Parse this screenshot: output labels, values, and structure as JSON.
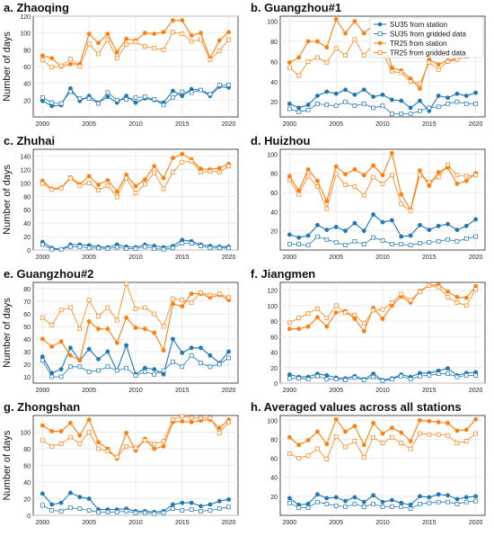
{
  "figure": {
    "ylabel": "Number of days",
    "colors": {
      "su35": "#1f77b4",
      "tr25": "#ff7f0e"
    }
  },
  "chart_data": [
    {
      "type": "line",
      "title": "a. Zhaoqing",
      "x": [
        2000,
        2001,
        2002,
        2003,
        2004,
        2005,
        2006,
        2007,
        2008,
        2009,
        2010,
        2011,
        2012,
        2013,
        2014,
        2015,
        2016,
        2017,
        2018,
        2019,
        2020
      ],
      "xticks": [
        2000,
        2005,
        2010,
        2015,
        2020
      ],
      "ylim": [
        0,
        120
      ],
      "yticks": [
        20,
        40,
        60,
        80,
        100,
        120
      ],
      "ylabel": "Number of days",
      "series": [
        {
          "name": "SU35 from station",
          "values": [
            19,
            13,
            14,
            34,
            19,
            25,
            17,
            24,
            17,
            25,
            17,
            22,
            20,
            17,
            31,
            25,
            33,
            32,
            25,
            36,
            35
          ]
        },
        {
          "name": "SU35 from gridded data",
          "values": [
            23,
            17,
            16,
            30,
            22,
            22,
            16,
            29,
            20,
            21,
            23,
            24,
            21,
            14,
            23,
            30,
            29,
            32,
            27,
            38,
            38
          ]
        },
        {
          "name": "TR25 from station",
          "values": [
            73,
            70,
            60,
            63,
            63,
            99,
            88,
            99,
            77,
            93,
            91,
            100,
            99,
            101,
            115,
            115,
            97,
            100,
            70,
            91,
            101
          ]
        },
        {
          "name": "TR25 from gridded data",
          "values": [
            68,
            59,
            61,
            69,
            60,
            87,
            75,
            92,
            70,
            86,
            89,
            84,
            82,
            80,
            101,
            99,
            90,
            92,
            68,
            79,
            92
          ]
        }
      ]
    },
    {
      "type": "line",
      "title": "b. Guangzhou#1",
      "x": [
        2000,
        2001,
        2002,
        2003,
        2004,
        2005,
        2006,
        2007,
        2008,
        2009,
        2010,
        2011,
        2012,
        2013,
        2014,
        2015,
        2016,
        2017,
        2018,
        2019,
        2020
      ],
      "xticks": [
        2000,
        2005,
        2010,
        2015,
        2020
      ],
      "ylim": [
        5,
        105
      ],
      "yticks": [
        20,
        40,
        60,
        80,
        100
      ],
      "series": [
        {
          "name": "SU35 from station",
          "values": [
            18,
            14,
            17,
            26,
            30,
            28,
            32,
            27,
            32,
            25,
            27,
            22,
            21,
            14,
            21,
            11,
            26,
            24,
            28,
            26,
            29
          ]
        },
        {
          "name": "SU35 from gridded data",
          "values": [
            13,
            10,
            12,
            18,
            17,
            16,
            20,
            16,
            18,
            14,
            16,
            8,
            8,
            8,
            11,
            14,
            15,
            18,
            20,
            18,
            18
          ]
        },
        {
          "name": "TR25 from station",
          "values": [
            59,
            64,
            80,
            80,
            74,
            102,
            88,
            100,
            88,
            96,
            86,
            54,
            51,
            43,
            33,
            62,
            57,
            61,
            63,
            67,
            72
          ]
        },
        {
          "name": "TR25 from gridded data",
          "values": [
            54,
            46,
            60,
            64,
            59,
            73,
            66,
            82,
            66,
            78,
            69,
            50,
            49,
            40,
            38,
            59,
            52,
            60,
            62,
            65,
            70
          ]
        }
      ],
      "legend": {
        "position": "top-right",
        "entries": [
          "SU35 from station",
          "SU35 from gridded data",
          "TR25 from station",
          "TR25 from gridded data"
        ]
      }
    },
    {
      "type": "line",
      "title": "c. Zhuhai",
      "x": [
        2000,
        2001,
        2002,
        2003,
        2004,
        2005,
        2006,
        2007,
        2008,
        2009,
        2010,
        2011,
        2012,
        2013,
        2014,
        2015,
        2016,
        2017,
        2018,
        2019,
        2020
      ],
      "xticks": [
        2000,
        2005,
        2010,
        2015,
        2020
      ],
      "ylim": [
        0,
        150
      ],
      "yticks": [
        0,
        20,
        40,
        60,
        80,
        100,
        120,
        140
      ],
      "ylabel": "Number of days",
      "series": [
        {
          "name": "SU35 from station",
          "values": [
            12,
            3,
            1,
            8,
            8,
            7,
            5,
            4,
            8,
            5,
            4,
            8,
            6,
            4,
            6,
            15,
            13,
            8,
            6,
            5,
            5
          ]
        },
        {
          "name": "SU35 from gridded data",
          "values": [
            8,
            1,
            1,
            5,
            5,
            3,
            3,
            2,
            4,
            2,
            2,
            5,
            2,
            1,
            3,
            10,
            10,
            6,
            3,
            3,
            3
          ]
        },
        {
          "name": "TR25 from station",
          "values": [
            103,
            91,
            93,
            108,
            98,
            110,
            97,
            104,
            87,
            112,
            95,
            105,
            125,
            107,
            137,
            143,
            135,
            121,
            120,
            122,
            128
          ]
        },
        {
          "name": "TR25 from gridded data",
          "values": [
            99,
            90,
            92,
            107,
            96,
            100,
            89,
            96,
            79,
            107,
            85,
            98,
            115,
            91,
            116,
            131,
            132,
            116,
            117,
            116,
            125
          ]
        }
      ]
    },
    {
      "type": "line",
      "title": "d. Huizhou",
      "x": [
        2000,
        2001,
        2002,
        2003,
        2004,
        2005,
        2006,
        2007,
        2008,
        2009,
        2010,
        2011,
        2012,
        2013,
        2014,
        2015,
        2016,
        2017,
        2018,
        2019,
        2020
      ],
      "xticks": [
        2000,
        2005,
        2010,
        2015,
        2020
      ],
      "ylim": [
        0,
        105
      ],
      "yticks": [
        20,
        40,
        60,
        80,
        100
      ],
      "series": [
        {
          "name": "SU35 from station",
          "values": [
            16,
            13,
            15,
            26,
            21,
            24,
            20,
            28,
            20,
            37,
            29,
            31,
            14,
            15,
            26,
            21,
            25,
            27,
            21,
            25,
            32
          ]
        },
        {
          "name": "SU35 from gridded data",
          "values": [
            6,
            6,
            5,
            14,
            11,
            8,
            5,
            9,
            6,
            13,
            10,
            6,
            6,
            5,
            7,
            8,
            9,
            11,
            9,
            12,
            14
          ]
        },
        {
          "name": "TR25 from station",
          "values": [
            77,
            62,
            84,
            72,
            51,
            87,
            79,
            84,
            78,
            88,
            78,
            101,
            58,
            42,
            83,
            67,
            81,
            86,
            69,
            72,
            80
          ]
        },
        {
          "name": "TR25 from gridded data",
          "values": [
            73,
            58,
            77,
            66,
            43,
            79,
            68,
            66,
            57,
            76,
            69,
            78,
            48,
            41,
            78,
            71,
            76,
            89,
            78,
            77,
            78
          ]
        }
      ]
    },
    {
      "type": "line",
      "title": "e. Guangzhou#2",
      "x": [
        2000,
        2001,
        2002,
        2003,
        2004,
        2005,
        2006,
        2007,
        2008,
        2009,
        2010,
        2011,
        2012,
        2013,
        2014,
        2015,
        2016,
        2017,
        2018,
        2019,
        2020
      ],
      "xticks": [
        2000,
        2005,
        2010,
        2015,
        2020
      ],
      "ylim": [
        5,
        85
      ],
      "yticks": [
        10,
        20,
        30,
        40,
        50,
        60,
        70,
        80
      ],
      "ylabel": "Number of days",
      "series": [
        {
          "name": "SU35 from station",
          "values": [
            26,
            13,
            16,
            33,
            23,
            32,
            24,
            30,
            15,
            35,
            12,
            17,
            16,
            12,
            40,
            29,
            33,
            33,
            27,
            21,
            30
          ]
        },
        {
          "name": "SU35 from gridded data",
          "values": [
            23,
            10,
            10,
            18,
            18,
            14,
            15,
            18,
            15,
            17,
            11,
            14,
            12,
            15,
            22,
            18,
            27,
            21,
            18,
            20,
            25
          ]
        },
        {
          "name": "TR25 from station",
          "values": [
            40,
            34,
            38,
            27,
            23,
            54,
            48,
            48,
            37,
            57,
            49,
            48,
            45,
            31,
            68,
            66,
            76,
            76,
            73,
            75,
            71
          ]
        },
        {
          "name": "TR25 from gridded data",
          "values": [
            57,
            51,
            63,
            65,
            48,
            71,
            58,
            65,
            55,
            84,
            64,
            65,
            60,
            50,
            72,
            71,
            69,
            77,
            75,
            76,
            73
          ]
        }
      ]
    },
    {
      "type": "line",
      "title": "f. Jiangmen",
      "x": [
        2000,
        2001,
        2002,
        2003,
        2004,
        2005,
        2006,
        2007,
        2008,
        2009,
        2010,
        2011,
        2012,
        2013,
        2014,
        2015,
        2016,
        2017,
        2018,
        2019,
        2020
      ],
      "xticks": [
        2000,
        2005,
        2010,
        2015,
        2020
      ],
      "ylim": [
        0,
        130
      ],
      "yticks": [
        0,
        20,
        40,
        60,
        80,
        100,
        120
      ],
      "series": [
        {
          "name": "SU35 from station",
          "values": [
            11,
            8,
            8,
            12,
            10,
            7,
            6,
            9,
            5,
            12,
            4,
            6,
            11,
            8,
            13,
            13,
            16,
            19,
            10,
            13,
            14
          ]
        },
        {
          "name": "SU35 from gridded data",
          "values": [
            6,
            6,
            5,
            9,
            5,
            5,
            4,
            7,
            4,
            8,
            3,
            5,
            9,
            5,
            9,
            10,
            12,
            12,
            8,
            10,
            10
          ]
        },
        {
          "name": "TR25 from station",
          "values": [
            70,
            70,
            73,
            85,
            73,
            91,
            93,
            83,
            67,
            97,
            83,
            100,
            112,
            104,
            119,
            126,
            127,
            118,
            111,
            110,
            125
          ]
        },
        {
          "name": "TR25 from gridded data",
          "values": [
            78,
            84,
            90,
            96,
            84,
            100,
            91,
            88,
            77,
            94,
            95,
            104,
            115,
            107,
            118,
            126,
            124,
            111,
            104,
            100,
            121
          ]
        }
      ]
    },
    {
      "type": "line",
      "title": "g. Zhongshan",
      "x": [
        2000,
        2001,
        2002,
        2003,
        2004,
        2005,
        2006,
        2007,
        2008,
        2009,
        2010,
        2011,
        2012,
        2013,
        2014,
        2015,
        2016,
        2017,
        2018,
        2019,
        2020
      ],
      "xticks": [
        2000,
        2005,
        2010,
        2015,
        2020
      ],
      "ylim": [
        0,
        120
      ],
      "yticks": [
        0,
        20,
        40,
        60,
        80,
        100
      ],
      "ylabel": "Number of days",
      "series": [
        {
          "name": "SU35 from station",
          "values": [
            26,
            13,
            15,
            27,
            22,
            20,
            7,
            7,
            7,
            8,
            5,
            5,
            4,
            5,
            13,
            15,
            15,
            11,
            13,
            17,
            19
          ]
        },
        {
          "name": "SU35 from gridded data",
          "values": [
            12,
            6,
            5,
            9,
            8,
            6,
            4,
            4,
            4,
            5,
            3,
            3,
            2,
            3,
            8,
            6,
            7,
            5,
            6,
            8,
            10
          ]
        },
        {
          "name": "TR25 from station",
          "values": [
            108,
            101,
            101,
            111,
            96,
            115,
            88,
            80,
            68,
            99,
            78,
            92,
            80,
            83,
            112,
            113,
            112,
            114,
            115,
            105,
            115
          ]
        },
        {
          "name": "TR25 from gridded data",
          "values": [
            90,
            83,
            86,
            94,
            86,
            100,
            80,
            77,
            70,
            83,
            81,
            90,
            86,
            89,
            115,
            119,
            117,
            117,
            117,
            99,
            112
          ]
        }
      ]
    },
    {
      "type": "line",
      "title": "h. Averaged values across all stations",
      "x": [
        2000,
        2001,
        2002,
        2003,
        2004,
        2005,
        2006,
        2007,
        2008,
        2009,
        2010,
        2011,
        2012,
        2013,
        2014,
        2015,
        2016,
        2017,
        2018,
        2019,
        2020
      ],
      "xticks": [
        2000,
        2005,
        2010,
        2015,
        2020
      ],
      "ylim": [
        0,
        105
      ],
      "yticks": [
        20,
        40,
        60,
        80,
        100
      ],
      "series": [
        {
          "name": "SU35 from station",
          "values": [
            18,
            11,
            12,
            22,
            18,
            19,
            15,
            19,
            14,
            21,
            14,
            16,
            13,
            11,
            20,
            19,
            22,
            21,
            17,
            19,
            20
          ]
        },
        {
          "name": "SU35 from gridded data",
          "values": [
            13,
            8,
            8,
            14,
            12,
            10,
            9,
            12,
            9,
            12,
            9,
            9,
            9,
            7,
            12,
            13,
            14,
            14,
            12,
            14,
            15
          ]
        },
        {
          "name": "TR25 from station",
          "values": [
            82,
            74,
            79,
            88,
            75,
            101,
            88,
            94,
            74,
            97,
            86,
            92,
            87,
            78,
            100,
            99,
            98,
            97,
            89,
            90,
            101
          ]
        },
        {
          "name": "TR25 from gridded data",
          "values": [
            65,
            60,
            63,
            70,
            59,
            83,
            72,
            78,
            61,
            82,
            76,
            82,
            76,
            70,
            86,
            85,
            85,
            84,
            76,
            78,
            86
          ]
        }
      ]
    }
  ]
}
